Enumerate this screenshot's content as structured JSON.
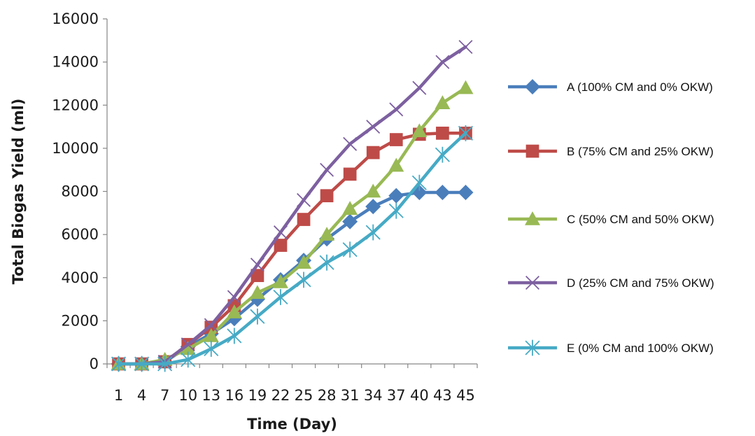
{
  "chart_data": {
    "type": "line",
    "title": "",
    "xlabel": "Time (Day)",
    "ylabel": "Total Biogas Yield (ml)",
    "x": [
      "1",
      "4",
      "7",
      "10",
      "13",
      "16",
      "19",
      "22",
      "25",
      "28",
      "31",
      "34",
      "37",
      "40",
      "43",
      "45"
    ],
    "ylim": [
      0,
      16000
    ],
    "yticks": [
      0,
      2000,
      4000,
      6000,
      8000,
      10000,
      12000,
      14000,
      16000
    ],
    "grid": false,
    "legend": "right",
    "series": [
      {
        "name": "A (100% CM and 0% OKW)",
        "color": "#4a7ebb",
        "marker": "diamond",
        "values": [
          0,
          0,
          100,
          800,
          1400,
          2100,
          3000,
          3900,
          4800,
          5800,
          6600,
          7300,
          7800,
          7950,
          7950,
          7950
        ]
      },
      {
        "name": "B (75% CM and 25% OKW)",
        "color": "#be4b48",
        "marker": "square",
        "values": [
          0,
          0,
          100,
          900,
          1700,
          2700,
          4100,
          5500,
          6700,
          7800,
          8800,
          9800,
          10400,
          10650,
          10700,
          10700
        ]
      },
      {
        "name": "C (50% CM and 50% OKW)",
        "color": "#98b954",
        "marker": "triangle",
        "values": [
          0,
          0,
          200,
          700,
          1300,
          2400,
          3300,
          3800,
          4700,
          6000,
          7200,
          8000,
          9200,
          10800,
          12100,
          12800
        ]
      },
      {
        "name": "D (25% CM and 75% OKW)",
        "color": "#7d60a0",
        "marker": "x",
        "values": [
          0,
          0,
          100,
          900,
          1800,
          3100,
          4600,
          6100,
          7600,
          9000,
          10200,
          11000,
          11800,
          12800,
          14000,
          14700
        ]
      },
      {
        "name": "E (0% CM and 100% OKW)",
        "color": "#46aac5",
        "marker": "star",
        "values": [
          0,
          0,
          0,
          200,
          700,
          1300,
          2200,
          3100,
          3900,
          4700,
          5300,
          6100,
          7100,
          8400,
          9700,
          10700
        ]
      }
    ]
  }
}
